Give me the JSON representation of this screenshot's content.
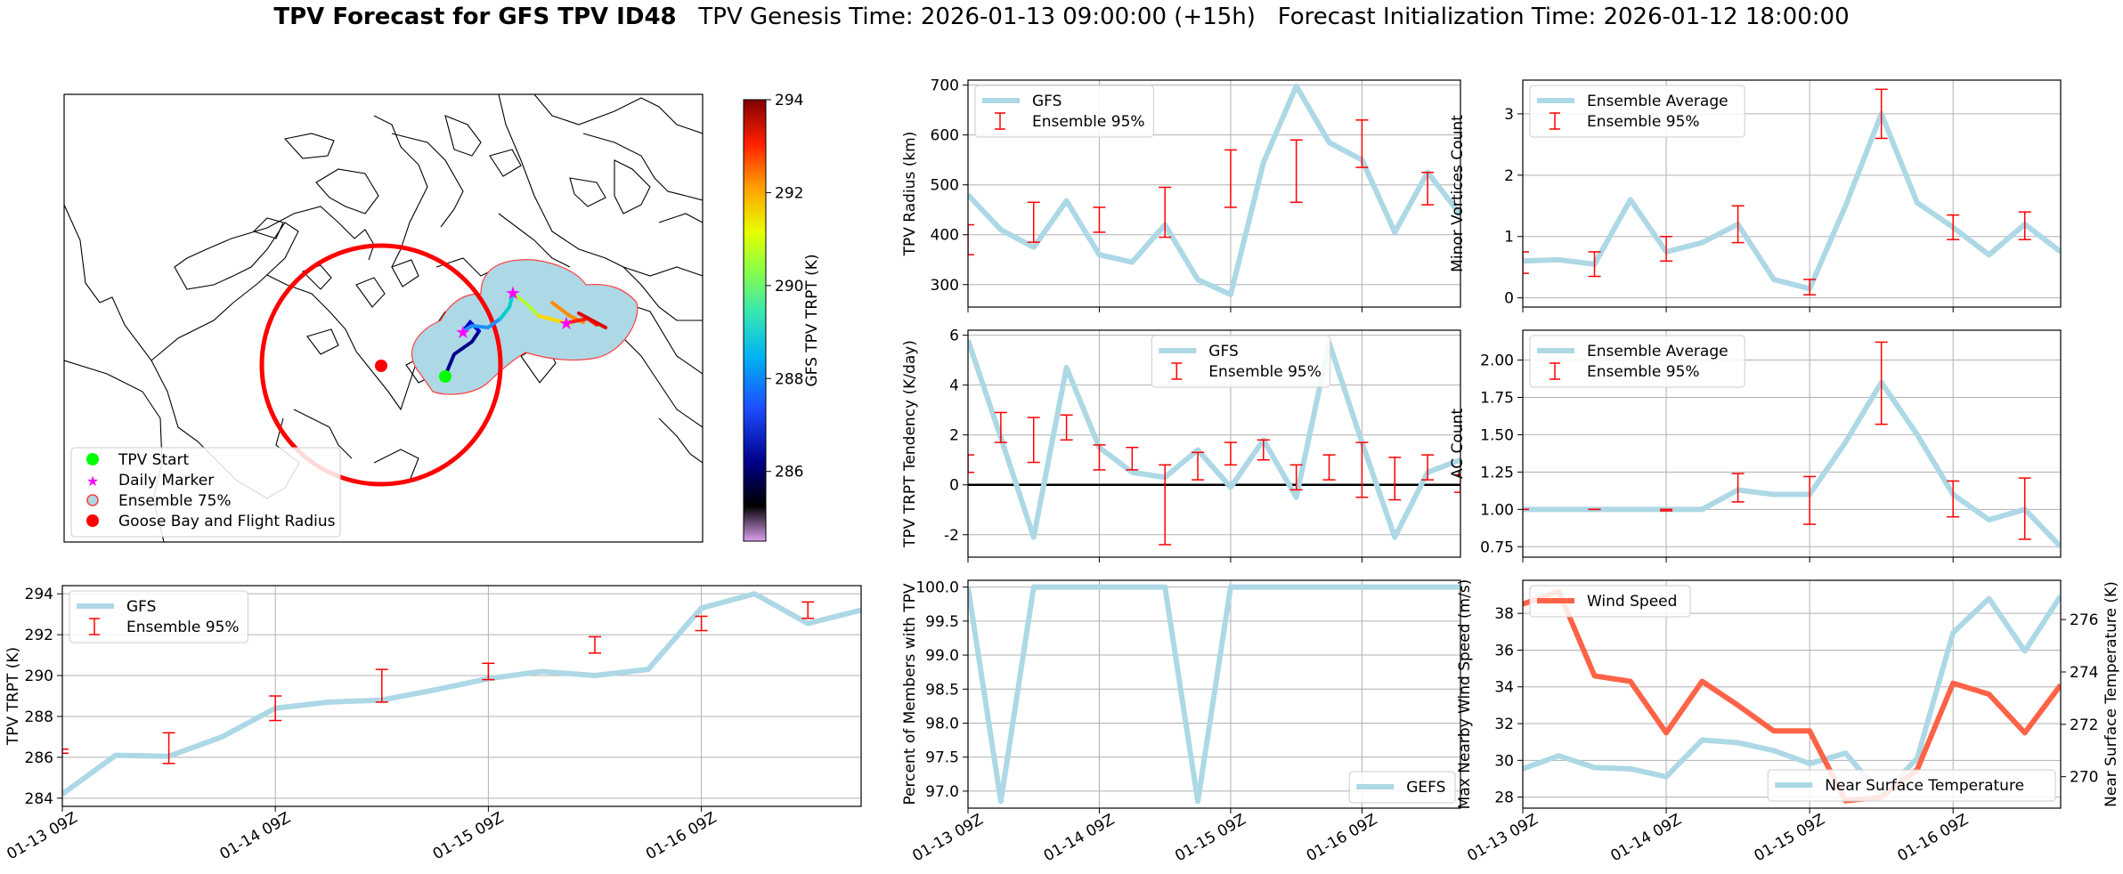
{
  "header": {
    "title_bold": "TPV Forecast for GFS TPV ID48",
    "genesis": "TPV Genesis Time: 2026-01-13 09:00:00 (+15h)",
    "init": "Forecast Initialization Time: 2026-01-12 18:00:00"
  },
  "colors": {
    "line": "#add8e6",
    "err": "#ff0000",
    "wind": "#ff6347",
    "temp_axis": "#4169e1"
  },
  "time_labels": [
    "01-13 09Z",
    "01-14 09Z",
    "01-15 09Z",
    "01-16 09Z"
  ],
  "map": {
    "colorbar_label": "GFS TPV TRPT (K)",
    "colorbar_ticks": [
      "286",
      "288",
      "290",
      "292",
      "294"
    ],
    "colorbar_range": [
      284.5,
      294
    ],
    "legend": [
      "TPV Start",
      "Daily Marker",
      "Ensemble 75%",
      "Goose Bay and Flight Radius"
    ]
  },
  "chart_data": [
    {
      "id": "trpt",
      "type": "line",
      "ylabel": "TPV TRPT (K)",
      "ylim": [
        283.6,
        294.4
      ],
      "yticks": [
        284,
        286,
        288,
        290,
        292,
        294
      ],
      "legend": [
        "GFS",
        "Ensemble 95%"
      ],
      "legend_pos": "top-left",
      "x": [
        0,
        3,
        6,
        9,
        12,
        15,
        18,
        21,
        24,
        27,
        30,
        33,
        36,
        39,
        42,
        45
      ],
      "values": [
        284.2,
        286.1,
        286.05,
        287.0,
        288.4,
        288.7,
        288.8,
        289.3,
        289.85,
        290.2,
        290.0,
        290.3,
        293.3,
        294.0,
        292.55,
        293.2
      ],
      "err_x": [
        0,
        6,
        12,
        18,
        24,
        30,
        36,
        42
      ],
      "err_lo": [
        286.2,
        285.7,
        287.8,
        288.7,
        289.8,
        291.1,
        292.2,
        292.8
      ],
      "err_hi": [
        286.4,
        287.2,
        289.0,
        290.3,
        290.6,
        291.9,
        292.9,
        293.6
      ]
    },
    {
      "id": "radius",
      "type": "line",
      "ylabel": "TPV Radius (km)",
      "ylim": [
        255,
        710
      ],
      "yticks": [
        300,
        400,
        500,
        600,
        700
      ],
      "legend": [
        "GFS",
        "Ensemble 95%"
      ],
      "legend_pos": "top-left",
      "x": [
        0,
        3,
        6,
        9,
        12,
        15,
        18,
        21,
        24,
        27,
        30,
        33,
        36,
        39,
        42,
        45
      ],
      "values": [
        480,
        410,
        375,
        468,
        360,
        345,
        420,
        310,
        280,
        545,
        698,
        585,
        550,
        405,
        525,
        440
      ],
      "err_x": [
        0,
        6,
        12,
        18,
        24,
        30,
        36,
        42
      ],
      "err_lo": [
        360,
        385,
        405,
        395,
        455,
        465,
        535,
        460
      ],
      "err_hi": [
        420,
        465,
        455,
        495,
        570,
        590,
        630,
        525
      ]
    },
    {
      "id": "minor",
      "type": "line",
      "ylabel": "Minor Vortices Count",
      "ylim": [
        -0.15,
        3.55
      ],
      "yticks": [
        0,
        1,
        2,
        3
      ],
      "legend": [
        "Ensemble Average",
        "Ensemble 95%"
      ],
      "legend_pos": "top-left",
      "x": [
        0,
        3,
        6,
        9,
        12,
        15,
        18,
        21,
        24,
        27,
        30,
        33,
        36,
        39,
        42,
        45
      ],
      "values": [
        0.6,
        0.62,
        0.55,
        1.6,
        0.75,
        0.9,
        1.2,
        0.3,
        0.15,
        1.5,
        3.0,
        1.55,
        1.15,
        0.7,
        1.2,
        0.75
      ],
      "err_x": [
        0,
        6,
        12,
        18,
        24,
        30,
        36,
        42
      ],
      "err_lo": [
        0.4,
        0.35,
        0.6,
        0.9,
        0.05,
        2.6,
        0.95,
        0.95
      ],
      "err_hi": [
        0.75,
        0.75,
        1.0,
        1.5,
        0.3,
        3.4,
        1.35,
        1.4
      ]
    },
    {
      "id": "tendency",
      "type": "line",
      "ylabel": "TPV TRPT Tendency (K/day)",
      "ylim": [
        -2.9,
        6.2
      ],
      "yticks": [
        -2,
        0,
        2,
        4,
        6
      ],
      "legend": [
        "GFS",
        "Ensemble 95%"
      ],
      "legend_pos": "top-center",
      "x": [
        0,
        3,
        6,
        9,
        12,
        15,
        18,
        21,
        24,
        27,
        30,
        33,
        36,
        39,
        42,
        45
      ],
      "values": [
        5.8,
        1.9,
        -2.1,
        4.7,
        1.5,
        0.5,
        0.3,
        1.4,
        -0.1,
        1.8,
        -0.5,
        5.7,
        1.7,
        -2.1,
        0.5,
        1.0
      ],
      "err_x": [
        0,
        3,
        6,
        9,
        12,
        15,
        18,
        21,
        24,
        27,
        30,
        33,
        36,
        39,
        42,
        45
      ],
      "err_lo": [
        0.5,
        1.7,
        0.9,
        1.8,
        0.6,
        0.6,
        -2.4,
        0.2,
        0.8,
        1.0,
        -0.2,
        0.2,
        -0.5,
        -0.6,
        0.2,
        -0.3
      ],
      "err_hi": [
        1.2,
        2.9,
        2.7,
        2.8,
        1.6,
        1.5,
        0.8,
        1.3,
        1.7,
        1.8,
        0.8,
        1.2,
        1.7,
        1.1,
        1.2,
        0.4
      ],
      "zero_line": true
    },
    {
      "id": "ac",
      "type": "line",
      "ylabel": "AC Count",
      "ylim": [
        0.68,
        2.2
      ],
      "yticks": [
        0.75,
        1.0,
        1.25,
        1.5,
        1.75,
        2.0
      ],
      "legend": [
        "Ensemble Average",
        "Ensemble 95%"
      ],
      "legend_pos": "top-left",
      "x": [
        0,
        3,
        6,
        9,
        12,
        15,
        18,
        21,
        24,
        27,
        30,
        33,
        36,
        39,
        42,
        45
      ],
      "values": [
        1.0,
        1.0,
        1.0,
        1.0,
        1.0,
        1.0,
        1.13,
        1.1,
        1.1,
        1.45,
        1.85,
        1.5,
        1.1,
        0.93,
        1.0,
        0.75
      ],
      "err_x": [
        0,
        6,
        12,
        18,
        24,
        30,
        36,
        42
      ],
      "err_lo": [
        1.0,
        1.0,
        0.99,
        1.05,
        0.9,
        1.57,
        0.95,
        0.8
      ],
      "err_hi": [
        1.0,
        1.0,
        1.0,
        1.24,
        1.22,
        2.12,
        1.19,
        1.21
      ]
    },
    {
      "id": "percent",
      "type": "line",
      "ylabel": "Percent of Members with TPV",
      "ylim": [
        96.75,
        100.1
      ],
      "yticks": [
        97.0,
        97.5,
        98.0,
        98.5,
        99.0,
        99.5,
        100.0
      ],
      "yfmt": 1,
      "legend": [
        "GEFS"
      ],
      "legend_pos": "bottom-right",
      "x": [
        0,
        3,
        6,
        9,
        12,
        15,
        18,
        21,
        24,
        27,
        30,
        33,
        36,
        39,
        42,
        45
      ],
      "values": [
        100.0,
        96.85,
        100.0,
        100.0,
        100.0,
        100.0,
        100.0,
        96.85,
        100.0,
        100.0,
        100.0,
        100.0,
        100.0,
        100.0,
        100.0,
        100.0
      ]
    },
    {
      "id": "wind",
      "type": "line",
      "ylabel": "Max Nearby Wind Speed (m/s)",
      "y2label": "Near Surface Temperature (K)",
      "ylim": [
        27.4,
        39.8
      ],
      "yticks": [
        28,
        30,
        32,
        34,
        36,
        38
      ],
      "y2lim": [
        268.8,
        277.5
      ],
      "y2ticks": [
        270,
        272,
        274,
        276
      ],
      "legend": [
        "Wind Speed"
      ],
      "legend2": [
        "Near Surface Temperature"
      ],
      "x": [
        0,
        3,
        6,
        9,
        12,
        15,
        18,
        21,
        24,
        27,
        30,
        33,
        36,
        39,
        42,
        45
      ],
      "values": [
        38.5,
        39.2,
        34.6,
        34.3,
        31.5,
        34.3,
        33.0,
        31.6,
        31.6,
        27.8,
        28.0,
        29.5,
        34.2,
        33.6,
        31.5,
        34.1
      ],
      "temp": [
        270.3,
        270.8,
        270.35,
        270.3,
        270.0,
        271.4,
        271.3,
        271.0,
        270.5,
        270.9,
        269.3,
        270.7,
        275.5,
        276.8,
        274.8,
        276.9
      ]
    }
  ]
}
